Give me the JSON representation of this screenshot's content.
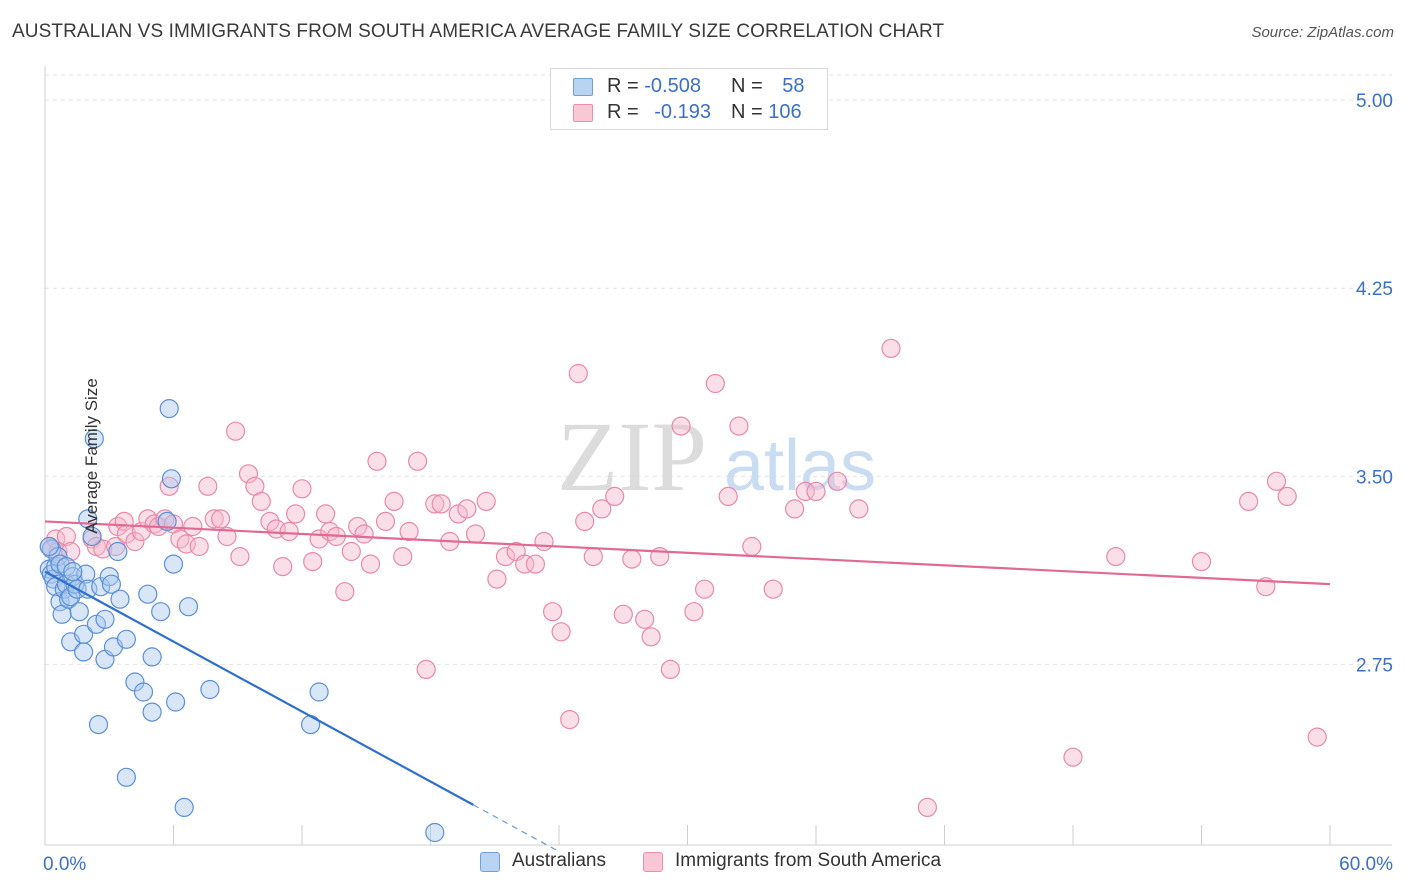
{
  "header": {
    "title": "AUSTRALIAN VS IMMIGRANTS FROM SOUTH AMERICA AVERAGE FAMILY SIZE CORRELATION CHART",
    "source": "Source: ZipAtlas.com"
  },
  "legend": {
    "rows": [
      {
        "r_label": "R =",
        "r_value": "-0.508",
        "n_label": "N =",
        "n_value": "58"
      },
      {
        "r_label": "R =",
        "r_value": "-0.193",
        "n_label": "N =",
        "n_value": "106"
      }
    ],
    "series_names": [
      "Australians",
      "Immigrants from South America"
    ]
  },
  "colors": {
    "blue_fill": "#a9c8f0",
    "blue_stroke": "#5b8fd6",
    "blue_line": "#2f6fd0",
    "pink_fill": "#f6b9cc",
    "pink_stroke": "#e889a8",
    "pink_line": "#e06a93",
    "tick_label": "#3a70c8",
    "grid": "#e4e4e4",
    "watermark": "#dcdcdc"
  },
  "watermark": {
    "zip": "ZIP",
    "atlas": "atlas"
  },
  "chart_data": {
    "type": "scatter",
    "title": "AUSTRALIAN VS IMMIGRANTS FROM SOUTH AMERICA AVERAGE FAMILY SIZE CORRELATION CHART",
    "xlabel": "",
    "ylabel": "Average Family Size",
    "xlim": [
      0,
      60
    ],
    "ylim": [
      2.03,
      5.1
    ],
    "x_tick_labels": [
      "0.0%",
      "60.0%"
    ],
    "y_ticks": [
      2.75,
      3.5,
      4.25,
      5.0
    ],
    "y_tick_labels": [
      "2.75",
      "3.50",
      "4.25",
      "5.00"
    ],
    "series": [
      {
        "name": "Australians",
        "R": -0.508,
        "N": 58,
        "trend": {
          "x0": 0,
          "y0": 3.12,
          "x1": 20.0,
          "y1": 2.19,
          "dash_to_x": 24.0
        },
        "points": [
          [
            0.2,
            3.13
          ],
          [
            0.3,
            3.21
          ],
          [
            0.3,
            3.11
          ],
          [
            0.4,
            3.09
          ],
          [
            0.5,
            3.06
          ],
          [
            0.5,
            3.14
          ],
          [
            0.6,
            3.18
          ],
          [
            0.7,
            3.15
          ],
          [
            0.7,
            3.0
          ],
          [
            0.8,
            2.95
          ],
          [
            0.9,
            3.05
          ],
          [
            1.0,
            3.07
          ],
          [
            1.0,
            3.14
          ],
          [
            1.1,
            3.01
          ],
          [
            1.2,
            2.84
          ],
          [
            1.2,
            3.02
          ],
          [
            1.3,
            3.1
          ],
          [
            1.4,
            3.07
          ],
          [
            1.5,
            3.05
          ],
          [
            1.6,
            2.96
          ],
          [
            1.8,
            2.8
          ],
          [
            1.8,
            2.87
          ],
          [
            1.9,
            3.11
          ],
          [
            2.0,
            3.33
          ],
          [
            2.0,
            3.05
          ],
          [
            2.2,
            3.26
          ],
          [
            2.3,
            3.65
          ],
          [
            2.4,
            2.91
          ],
          [
            2.5,
            2.51
          ],
          [
            2.6,
            3.06
          ],
          [
            2.8,
            2.93
          ],
          [
            2.8,
            2.77
          ],
          [
            3.0,
            3.1
          ],
          [
            3.1,
            3.07
          ],
          [
            3.2,
            2.82
          ],
          [
            3.4,
            3.2
          ],
          [
            3.5,
            3.01
          ],
          [
            3.8,
            2.3
          ],
          [
            3.8,
            2.85
          ],
          [
            4.2,
            2.68
          ],
          [
            4.6,
            2.64
          ],
          [
            4.8,
            3.03
          ],
          [
            5.0,
            2.78
          ],
          [
            5.0,
            2.56
          ],
          [
            5.4,
            2.96
          ],
          [
            5.7,
            3.32
          ],
          [
            5.8,
            3.77
          ],
          [
            5.9,
            3.49
          ],
          [
            6.0,
            3.15
          ],
          [
            6.1,
            2.6
          ],
          [
            6.5,
            2.18
          ],
          [
            6.7,
            2.98
          ],
          [
            7.7,
            2.65
          ],
          [
            12.4,
            2.51
          ],
          [
            12.8,
            2.64
          ],
          [
            18.2,
            2.08
          ],
          [
            0.2,
            3.22
          ],
          [
            1.3,
            3.12
          ]
        ]
      },
      {
        "name": "Immigrants from South America",
        "R": -0.193,
        "N": 106,
        "trend": {
          "x0": 0,
          "y0": 3.32,
          "x1": 60,
          "y1": 3.07
        },
        "points": [
          [
            0.2,
            3.22
          ],
          [
            0.5,
            3.25
          ],
          [
            0.6,
            3.2
          ],
          [
            1.0,
            3.26
          ],
          [
            1.2,
            3.2
          ],
          [
            2.2,
            3.25
          ],
          [
            2.4,
            3.22
          ],
          [
            2.7,
            3.21
          ],
          [
            3.3,
            3.22
          ],
          [
            3.4,
            3.3
          ],
          [
            3.7,
            3.32
          ],
          [
            3.8,
            3.27
          ],
          [
            4.2,
            3.24
          ],
          [
            4.5,
            3.28
          ],
          [
            4.8,
            3.33
          ],
          [
            5.1,
            3.31
          ],
          [
            5.3,
            3.3
          ],
          [
            5.6,
            3.33
          ],
          [
            5.8,
            3.46
          ],
          [
            6.0,
            3.31
          ],
          [
            6.3,
            3.25
          ],
          [
            6.6,
            3.23
          ],
          [
            6.9,
            3.3
          ],
          [
            7.2,
            3.22
          ],
          [
            7.6,
            3.46
          ],
          [
            7.9,
            3.33
          ],
          [
            8.2,
            3.33
          ],
          [
            8.5,
            3.26
          ],
          [
            8.9,
            3.68
          ],
          [
            9.1,
            3.18
          ],
          [
            9.5,
            3.51
          ],
          [
            9.8,
            3.46
          ],
          [
            10.1,
            3.4
          ],
          [
            10.5,
            3.32
          ],
          [
            10.8,
            3.29
          ],
          [
            11.1,
            3.14
          ],
          [
            11.4,
            3.28
          ],
          [
            11.7,
            3.35
          ],
          [
            12.0,
            3.45
          ],
          [
            12.5,
            3.16
          ],
          [
            12.8,
            3.25
          ],
          [
            13.1,
            3.35
          ],
          [
            13.3,
            3.28
          ],
          [
            13.6,
            3.26
          ],
          [
            14.0,
            3.04
          ],
          [
            14.3,
            3.2
          ],
          [
            14.6,
            3.3
          ],
          [
            14.9,
            3.27
          ],
          [
            15.2,
            3.15
          ],
          [
            15.5,
            3.56
          ],
          [
            15.9,
            3.32
          ],
          [
            16.3,
            3.4
          ],
          [
            16.7,
            3.18
          ],
          [
            17.0,
            3.28
          ],
          [
            17.4,
            3.56
          ],
          [
            17.8,
            2.73
          ],
          [
            18.2,
            3.39
          ],
          [
            18.5,
            3.39
          ],
          [
            18.9,
            3.24
          ],
          [
            19.3,
            3.35
          ],
          [
            19.7,
            3.37
          ],
          [
            20.1,
            3.27
          ],
          [
            20.6,
            3.4
          ],
          [
            21.1,
            3.09
          ],
          [
            21.5,
            3.18
          ],
          [
            22.0,
            3.2
          ],
          [
            22.4,
            3.15
          ],
          [
            22.9,
            3.15
          ],
          [
            23.3,
            3.24
          ],
          [
            23.7,
            2.96
          ],
          [
            24.1,
            2.88
          ],
          [
            24.5,
            2.53
          ],
          [
            24.9,
            3.91
          ],
          [
            25.2,
            3.32
          ],
          [
            25.6,
            3.18
          ],
          [
            26.0,
            3.37
          ],
          [
            26.6,
            3.42
          ],
          [
            27.0,
            2.95
          ],
          [
            27.4,
            3.17
          ],
          [
            28.0,
            2.93
          ],
          [
            28.3,
            2.86
          ],
          [
            28.7,
            3.18
          ],
          [
            29.2,
            2.73
          ],
          [
            29.7,
            3.7
          ],
          [
            30.3,
            2.96
          ],
          [
            30.8,
            3.05
          ],
          [
            31.3,
            3.87
          ],
          [
            31.9,
            3.42
          ],
          [
            32.4,
            3.7
          ],
          [
            33.0,
            3.22
          ],
          [
            34.0,
            3.05
          ],
          [
            35.0,
            3.37
          ],
          [
            35.5,
            3.44
          ],
          [
            36.0,
            3.44
          ],
          [
            37.0,
            3.48
          ],
          [
            38.0,
            3.37
          ],
          [
            39.5,
            4.01
          ],
          [
            41.2,
            2.18
          ],
          [
            48.0,
            2.38
          ],
          [
            50.0,
            3.18
          ],
          [
            54.0,
            3.16
          ],
          [
            57.0,
            3.06
          ],
          [
            57.5,
            3.48
          ],
          [
            58.0,
            3.42
          ],
          [
            59.4,
            2.46
          ],
          [
            56.2,
            3.4
          ]
        ]
      }
    ]
  }
}
